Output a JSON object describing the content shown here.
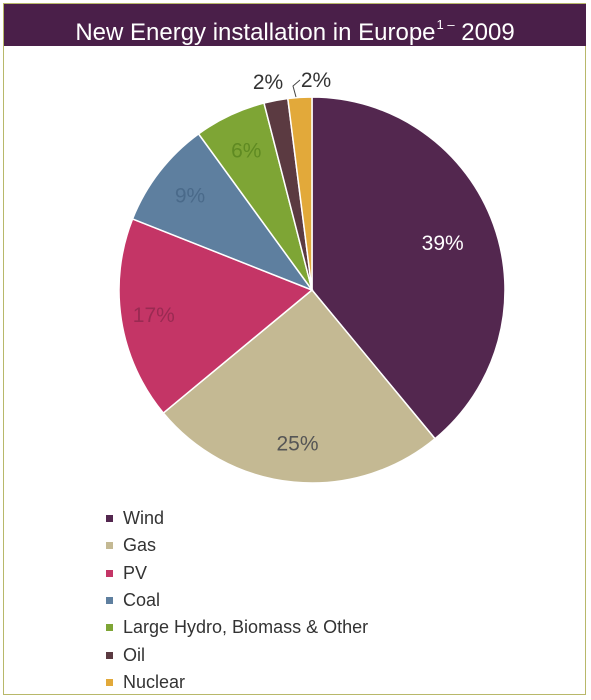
{
  "header": {
    "title_main": "New Energy installation in Europe",
    "title_superscript": "1 –",
    "title_year": "2009"
  },
  "chart_data": {
    "type": "pie",
    "title": "New Energy installation in Europe1 – 2009",
    "categories": [
      "Wind",
      "Gas",
      "PV",
      "Coal",
      "Large Hydro, Biomass & Other",
      "Oil",
      "Nuclear"
    ],
    "values": [
      39,
      25,
      17,
      9,
      6,
      2,
      2
    ],
    "labels": [
      "39%",
      "25%",
      "17%",
      "9%",
      "6%",
      "2%",
      "2%"
    ],
    "colors": [
      "#53274f",
      "#c4b993",
      "#c43566",
      "#5e7f9f",
      "#7ea535",
      "#5b3a41",
      "#e2a93a"
    ],
    "legend_placement": "bottom-left"
  }
}
